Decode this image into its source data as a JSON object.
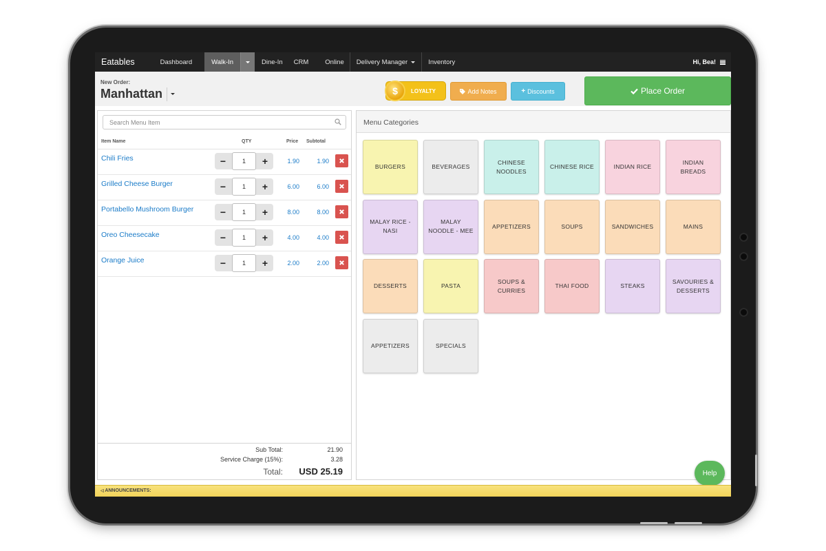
{
  "nav": {
    "brand": "Eatables",
    "items": [
      "Dashboard",
      "Walk-In",
      "Dine-In",
      "CRM",
      "Online",
      "Delivery Manager",
      "Inventory"
    ],
    "user": "Hi, Bea!"
  },
  "header": {
    "new_order_label": "New Order:",
    "location": "Manhattan",
    "loyalty_label": "LOYALTY",
    "add_notes_label": "Add Notes",
    "discounts_label": "Discounts",
    "place_order_label": "Place Order"
  },
  "search": {
    "placeholder": "Search Menu Item"
  },
  "table": {
    "headers": {
      "item": "Item Name",
      "qty": "QTY",
      "price": "Price",
      "subtotal": "Subtotal"
    },
    "rows": [
      {
        "name": "Chili Fries",
        "qty": "1",
        "price": "1.90",
        "subtotal": "1.90"
      },
      {
        "name": "Grilled Cheese Burger",
        "qty": "1",
        "price": "6.00",
        "subtotal": "6.00"
      },
      {
        "name": "Portabello Mushroom Burger",
        "qty": "1",
        "price": "8.00",
        "subtotal": "8.00"
      },
      {
        "name": "Oreo Cheesecake",
        "qty": "1",
        "price": "4.00",
        "subtotal": "4.00"
      },
      {
        "name": "Orange Juice",
        "qty": "1",
        "price": "2.00",
        "subtotal": "2.00"
      }
    ]
  },
  "totals": {
    "sub_total_label": "Sub Total:",
    "sub_total": "21.90",
    "service_label": "Service Charge (15%):",
    "service": "3.28",
    "total_label": "Total:",
    "total": "USD 25.19"
  },
  "menu": {
    "header": "Menu Categories",
    "categories": [
      {
        "label": "BURGERS",
        "color": "#f8f4b0"
      },
      {
        "label": "BEVERAGES",
        "color": "#ececec"
      },
      {
        "label": "CHINESE NOODLES",
        "color": "#c9f0ea"
      },
      {
        "label": "CHINESE RICE",
        "color": "#c9f0ea"
      },
      {
        "label": "INDIAN RICE",
        "color": "#f8d3de"
      },
      {
        "label": "INDIAN BREADS",
        "color": "#f8d3de"
      },
      {
        "label": "MALAY RICE - NASI",
        "color": "#e7d6f2"
      },
      {
        "label": "MALAY NOODLE - MEE",
        "color": "#e7d6f2"
      },
      {
        "label": "APPETIZERS",
        "color": "#fbdcb9"
      },
      {
        "label": "SOUPS",
        "color": "#fbdcb9"
      },
      {
        "label": "SANDWICHES",
        "color": "#fbdcb9"
      },
      {
        "label": "MAINS",
        "color": "#fbdcb9"
      },
      {
        "label": "DESSERTS",
        "color": "#fbdcb9"
      },
      {
        "label": "PASTA",
        "color": "#f8f4b0"
      },
      {
        "label": "SOUPS & CURRIES",
        "color": "#f7c9c9"
      },
      {
        "label": "THAI FOOD",
        "color": "#f7c9c9"
      },
      {
        "label": "STEAKS",
        "color": "#e7d6f2"
      },
      {
        "label": "SAVOURIES & DESSERTS",
        "color": "#e7d6f2"
      },
      {
        "label": "APPETIZERS",
        "color": "#ececec"
      },
      {
        "label": "SPECIALS",
        "color": "#ececec"
      }
    ]
  },
  "help_label": "Help",
  "announcement": "ANNOUNCEMENTS:"
}
